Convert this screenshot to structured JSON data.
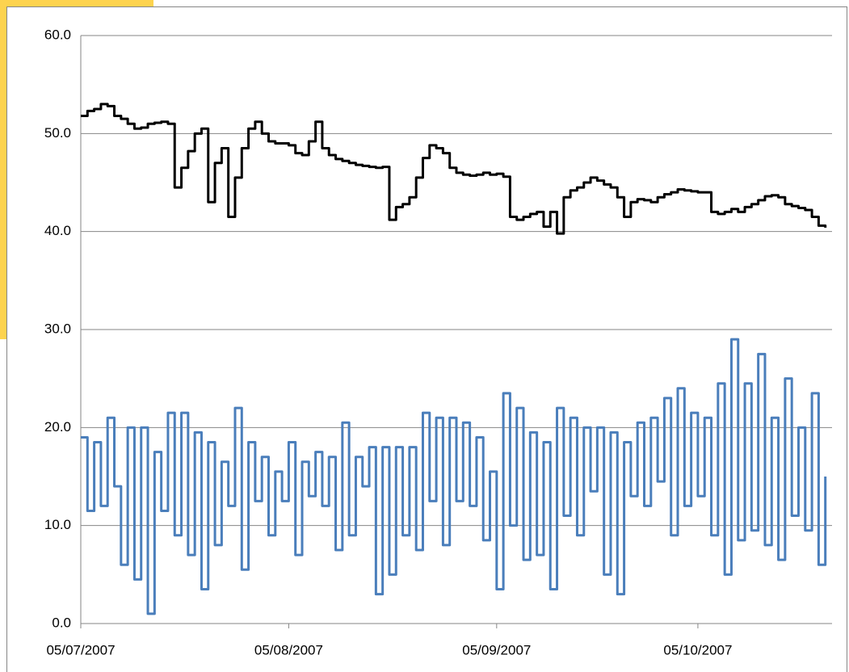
{
  "chart_data": {
    "type": "line",
    "step": true,
    "grid": true,
    "x": [
      0,
      1,
      2,
      3,
      4,
      5,
      6,
      7,
      8,
      9,
      10,
      11,
      12,
      13,
      14,
      15,
      16,
      17,
      18,
      19,
      20,
      21,
      22,
      23,
      24,
      25,
      26,
      27,
      28,
      29,
      30,
      31,
      32,
      33,
      34,
      35,
      36,
      37,
      38,
      39,
      40,
      41,
      42,
      43,
      44,
      45,
      46,
      47,
      48,
      49,
      50,
      51,
      52,
      53,
      54,
      55,
      56,
      57,
      58,
      59,
      60,
      61,
      62,
      63,
      64,
      65,
      66,
      67,
      68,
      69,
      70,
      71,
      72,
      73,
      74,
      75,
      76,
      77,
      78,
      79,
      80,
      81,
      82,
      83,
      84,
      85,
      86,
      87,
      88,
      89,
      90,
      91,
      92,
      93,
      94,
      95,
      96,
      97,
      98,
      99,
      100,
      101,
      102,
      103,
      104,
      105,
      106,
      107,
      108,
      109,
      110,
      111
    ],
    "xlim": [
      0,
      112
    ],
    "xticks": [
      {
        "value": 0,
        "label": "05/07/2007"
      },
      {
        "value": 31,
        "label": "05/08/2007"
      },
      {
        "value": 62,
        "label": "05/09/2007"
      },
      {
        "value": 92,
        "label": "05/10/2007"
      }
    ],
    "ylim": [
      0,
      60
    ],
    "yticks": [
      {
        "value": 0,
        "label": "0.0"
      },
      {
        "value": 10,
        "label": "10.0"
      },
      {
        "value": 20,
        "label": "20.0"
      },
      {
        "value": 30,
        "label": "30.0"
      },
      {
        "value": 40,
        "label": "40.0"
      },
      {
        "value": 50,
        "label": "50.0"
      },
      {
        "value": 60,
        "label": "60.0"
      }
    ],
    "series": [
      {
        "color": "#000000",
        "values": [
          51.8,
          52.3,
          52.5,
          53.0,
          52.8,
          51.8,
          51.5,
          51.0,
          50.5,
          50.6,
          51.0,
          51.1,
          51.2,
          51.0,
          44.5,
          46.5,
          48.2,
          50.0,
          50.5,
          43.0,
          47.0,
          48.5,
          41.5,
          45.5,
          48.5,
          50.5,
          51.2,
          50.0,
          49.2,
          49.0,
          49.0,
          48.8,
          48.0,
          47.8,
          49.2,
          51.2,
          48.5,
          47.8,
          47.4,
          47.2,
          47.0,
          46.8,
          46.7,
          46.6,
          46.5,
          46.6,
          41.2,
          42.5,
          42.8,
          43.5,
          45.5,
          47.5,
          48.8,
          48.5,
          48.0,
          46.5,
          46.0,
          45.8,
          45.7,
          45.8,
          46.0,
          45.8,
          45.9,
          45.6,
          41.5,
          41.2,
          41.5,
          41.8,
          42.0,
          40.5,
          42.0,
          39.8,
          43.5,
          44.2,
          44.5,
          45.0,
          45.5,
          45.2,
          44.8,
          44.5,
          43.5,
          41.5,
          43.0,
          43.3,
          43.2,
          43.0,
          43.5,
          43.8,
          44.0,
          44.3,
          44.2,
          44.1,
          44.0,
          44.0,
          42.0,
          41.8,
          42.0,
          42.3,
          42.0,
          42.5,
          42.8,
          43.2,
          43.6,
          43.7,
          43.5,
          42.8,
          42.6,
          42.4,
          42.2,
          41.5,
          40.6,
          40.4
        ]
      },
      {
        "color": "#4a7ebb",
        "values": [
          19,
          11.5,
          18.5,
          12,
          21,
          14,
          6,
          20,
          4.5,
          20,
          1,
          17.5,
          11.5,
          21.5,
          9,
          21.5,
          7,
          19.5,
          3.5,
          18.5,
          8,
          16.5,
          12,
          22,
          5.5,
          18.5,
          12.5,
          17,
          9,
          15.5,
          12.5,
          18.5,
          7,
          16.5,
          13,
          17.5,
          12,
          17,
          7.5,
          20.5,
          9,
          17,
          14,
          18,
          3,
          18,
          5,
          18,
          9,
          18,
          7.5,
          21.5,
          12.5,
          21,
          8,
          21,
          12.5,
          20.5,
          12,
          19,
          8.5,
          15.5,
          3.5,
          23.5,
          10,
          22,
          6.5,
          19.5,
          7,
          18.5,
          3.5,
          22,
          11,
          21,
          9,
          20,
          13.5,
          20,
          5,
          19.5,
          3,
          18.5,
          13,
          20.5,
          12,
          21,
          14.5,
          23,
          9,
          24,
          12,
          21.5,
          13,
          21,
          9,
          24.5,
          5,
          29,
          8.5,
          24.5,
          9.5,
          27.5,
          8,
          21,
          6.5,
          25,
          11,
          20,
          9.5,
          23.5,
          6,
          15
        ]
      }
    ]
  }
}
